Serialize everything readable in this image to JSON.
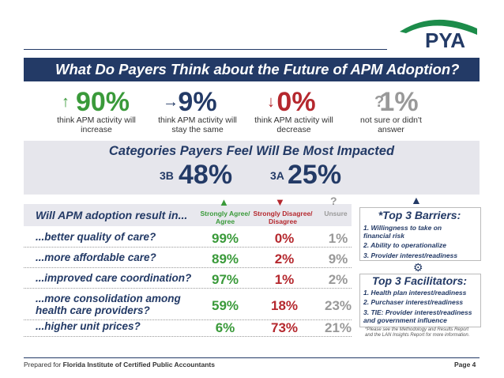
{
  "logo": "PYA",
  "header": {
    "title": "What Do Payers Think about the Future of APM Adoption?"
  },
  "stats": [
    {
      "value": "90%",
      "label": "think APM activity will increase"
    },
    {
      "value": "9%",
      "label": "think APM activity will stay the same"
    },
    {
      "value": "0%",
      "label": "think APM activity will decrease"
    },
    {
      "value": "1%",
      "label": "not sure or didn't answer"
    }
  ],
  "categories": {
    "title": "Categories Payers Feel Will Be Most Impacted",
    "items": [
      {
        "code": "3B",
        "value": "48%"
      },
      {
        "code": "3A",
        "value": "25%"
      }
    ]
  },
  "table": {
    "question": "Will APM adoption result in...",
    "columns": [
      "Strongly Agree/ Agree",
      "Strongly Disagree/ Disagree",
      "Unsure"
    ],
    "rows": [
      [
        "...better quality of care?",
        "99%",
        "0%",
        "1%"
      ],
      [
        "...more affordable care?",
        "89%",
        "2%",
        "9%"
      ],
      [
        "...improved care coordination?",
        "97%",
        "1%",
        "2%"
      ],
      [
        "...more consolidation among health care providers?",
        "59%",
        "18%",
        "23%"
      ],
      [
        "...higher unit prices?",
        "6%",
        "73%",
        "21%"
      ]
    ]
  },
  "barriers": {
    "title": "*Top 3 Barriers:",
    "items": [
      "1. Willingness to take on financial risk",
      "2. Ability to operationalize",
      "3. Provider interest/readiness"
    ]
  },
  "facilitators": {
    "title": "Top 3 Facilitators:",
    "items": [
      "1. Health plan interest/readiness",
      "2. Purchaser interest/readiness",
      "3. TIE: Provider interest/readiness and government influence"
    ]
  },
  "note": "*Please see the Methodology and Results Report and the LAN Insights Report for more information.",
  "footer": {
    "prefix": "Prepared for",
    "org": "Florida Institute of Certified Public Accountants",
    "page": "Page 4"
  }
}
